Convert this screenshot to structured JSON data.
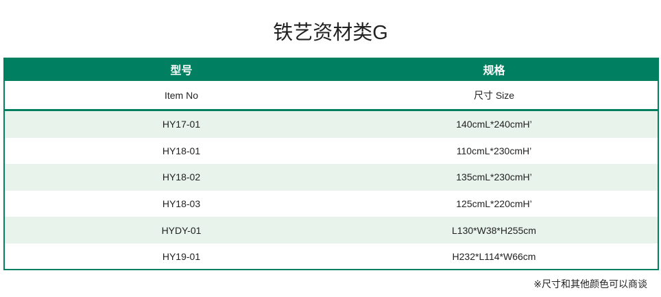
{
  "title": "铁艺资材类G",
  "table": {
    "headers": [
      "型号",
      "规格"
    ],
    "subheaders": [
      "Item No",
      "尺寸 Size"
    ],
    "rows": [
      [
        "HY17-01",
        "140cmL*240cmH’"
      ],
      [
        "HY18-01",
        "110cmL*230cmH’"
      ],
      [
        "HY18-02",
        "135cmL*230cmH’"
      ],
      [
        "HY18-03",
        "125cmL*220cmH’"
      ],
      [
        "HYDY-01",
        "L130*W38*H255cm"
      ],
      [
        "HY19-01",
        "H232*L114*W66cm"
      ]
    ]
  },
  "note": "※尺寸和其他颜色可以商谈",
  "colors": {
    "accent": "#008060",
    "row_alt": "#e8f3ec"
  }
}
